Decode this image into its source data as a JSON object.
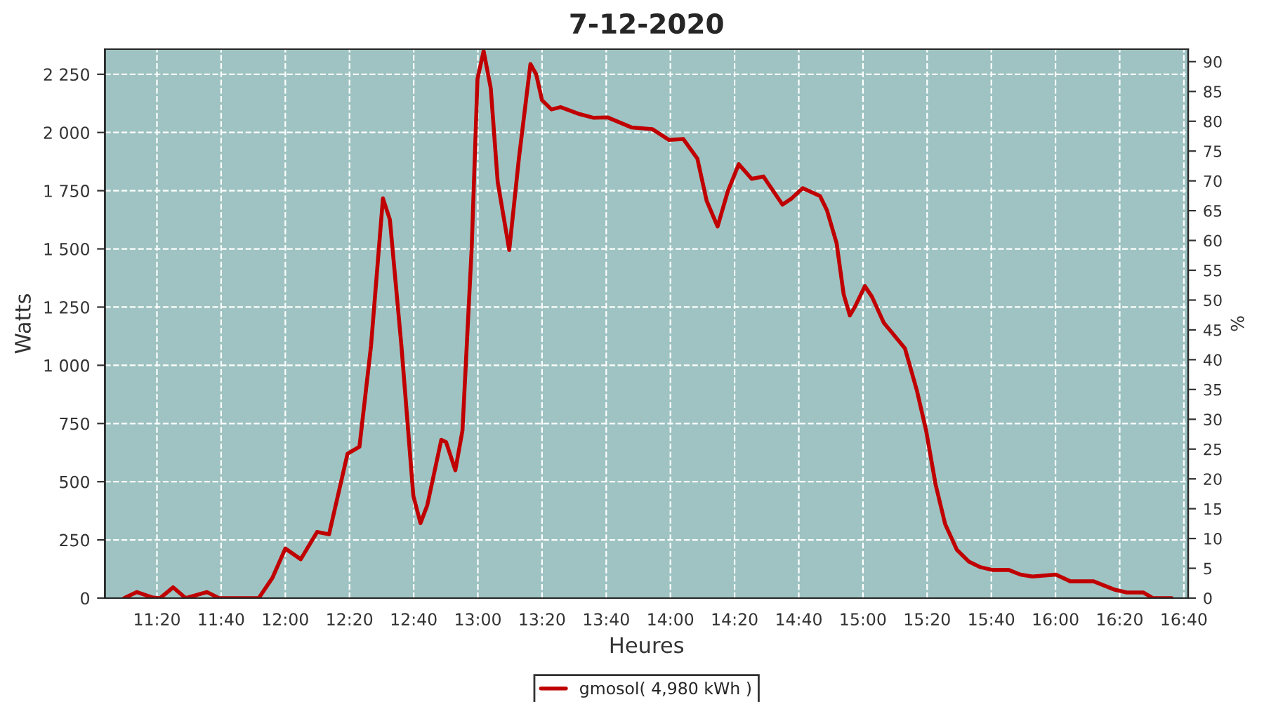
{
  "chart_data": {
    "type": "line",
    "title": "7-12-2020",
    "xlabel": "Heures",
    "ylabel": "Watts",
    "y2label": "%",
    "x": [
      11.163,
      11.228,
      11.313,
      11.35,
      11.417,
      11.483,
      11.593,
      11.655,
      11.862,
      11.933,
      12.0,
      12.08,
      12.165,
      12.227,
      12.323,
      12.385,
      12.445,
      12.507,
      12.543,
      12.603,
      12.665,
      12.702,
      12.737,
      12.81,
      12.835,
      12.883,
      12.92,
      12.968,
      12.998,
      13.03,
      13.067,
      13.103,
      13.163,
      13.213,
      13.273,
      13.303,
      13.333,
      13.382,
      13.43,
      13.528,
      13.602,
      13.673,
      13.797,
      13.907,
      13.993,
      14.067,
      14.14,
      14.188,
      14.245,
      14.298,
      14.355,
      14.422,
      14.483,
      14.582,
      14.63,
      14.687,
      14.777,
      14.813,
      14.863,
      14.9,
      14.932,
      14.96,
      15.01,
      15.047,
      15.108,
      15.218,
      15.28,
      15.328,
      15.377,
      15.427,
      15.488,
      15.55,
      15.61,
      15.672,
      15.757,
      15.818,
      15.88,
      16.002,
      16.077,
      16.198,
      16.308,
      16.37,
      16.457,
      16.505,
      16.603
    ],
    "series": [
      {
        "name": "gmosol( 4,980 kWh )",
        "color": "#c00000",
        "values": [
          0,
          26,
          2,
          0,
          46,
          0,
          26,
          0,
          0,
          87,
          213,
          167,
          284,
          274,
          620,
          650,
          1083,
          1717,
          1626,
          1083,
          439,
          322,
          398,
          680,
          670,
          549,
          720,
          1505,
          2230,
          2350,
          2190,
          1788,
          1495,
          1888,
          2294,
          2250,
          2139,
          2099,
          2109,
          2079,
          2063,
          2065,
          2022,
          2014,
          1968,
          1972,
          1888,
          1707,
          1596,
          1747,
          1864,
          1801,
          1811,
          1690,
          1717,
          1761,
          1727,
          1666,
          1525,
          1304,
          1214,
          1254,
          1340,
          1294,
          1183,
          1073,
          892,
          720,
          489,
          318,
          207,
          157,
          133,
          121,
          121,
          101,
          93,
          101,
          72,
          72,
          36,
          24,
          24,
          0,
          0
        ]
      }
    ],
    "xlim": [
      11.063,
      16.689
    ],
    "xticks": [
      {
        "value": 11.3333,
        "label": "11:20"
      },
      {
        "value": 11.6667,
        "label": "11:40"
      },
      {
        "value": 12.0,
        "label": "12:00"
      },
      {
        "value": 12.3333,
        "label": "12:20"
      },
      {
        "value": 12.6667,
        "label": "12:40"
      },
      {
        "value": 13.0,
        "label": "13:00"
      },
      {
        "value": 13.3333,
        "label": "13:20"
      },
      {
        "value": 13.6667,
        "label": "13:40"
      },
      {
        "value": 14.0,
        "label": "14:00"
      },
      {
        "value": 14.3333,
        "label": "14:20"
      },
      {
        "value": 14.6667,
        "label": "14:40"
      },
      {
        "value": 15.0,
        "label": "15:00"
      },
      {
        "value": 15.3333,
        "label": "15:20"
      },
      {
        "value": 15.6667,
        "label": "15:40"
      },
      {
        "value": 16.0,
        "label": "16:00"
      },
      {
        "value": 16.3333,
        "label": "16:20"
      },
      {
        "value": 16.6667,
        "label": "16:40"
      }
    ],
    "ylim": [
      0,
      2358
    ],
    "yticks": [
      0,
      250,
      500,
      750,
      {
        "value": 1000,
        "label": "1 000"
      },
      {
        "value": 1250,
        "label": "1 250"
      },
      {
        "value": 1500,
        "label": "1 500"
      },
      {
        "value": 1750,
        "label": "1 750"
      },
      {
        "value": 2000,
        "label": "2 000"
      },
      {
        "value": 2250,
        "label": "2 250"
      }
    ],
    "y2lim": [
      0,
      92.1
    ],
    "y2ticks": [
      0,
      5,
      10,
      15,
      20,
      25,
      30,
      35,
      40,
      45,
      50,
      55,
      60,
      65,
      70,
      75,
      80,
      85,
      90
    ],
    "grid": true,
    "legend": "bottom",
    "marker": "none",
    "line_style": "solid"
  }
}
